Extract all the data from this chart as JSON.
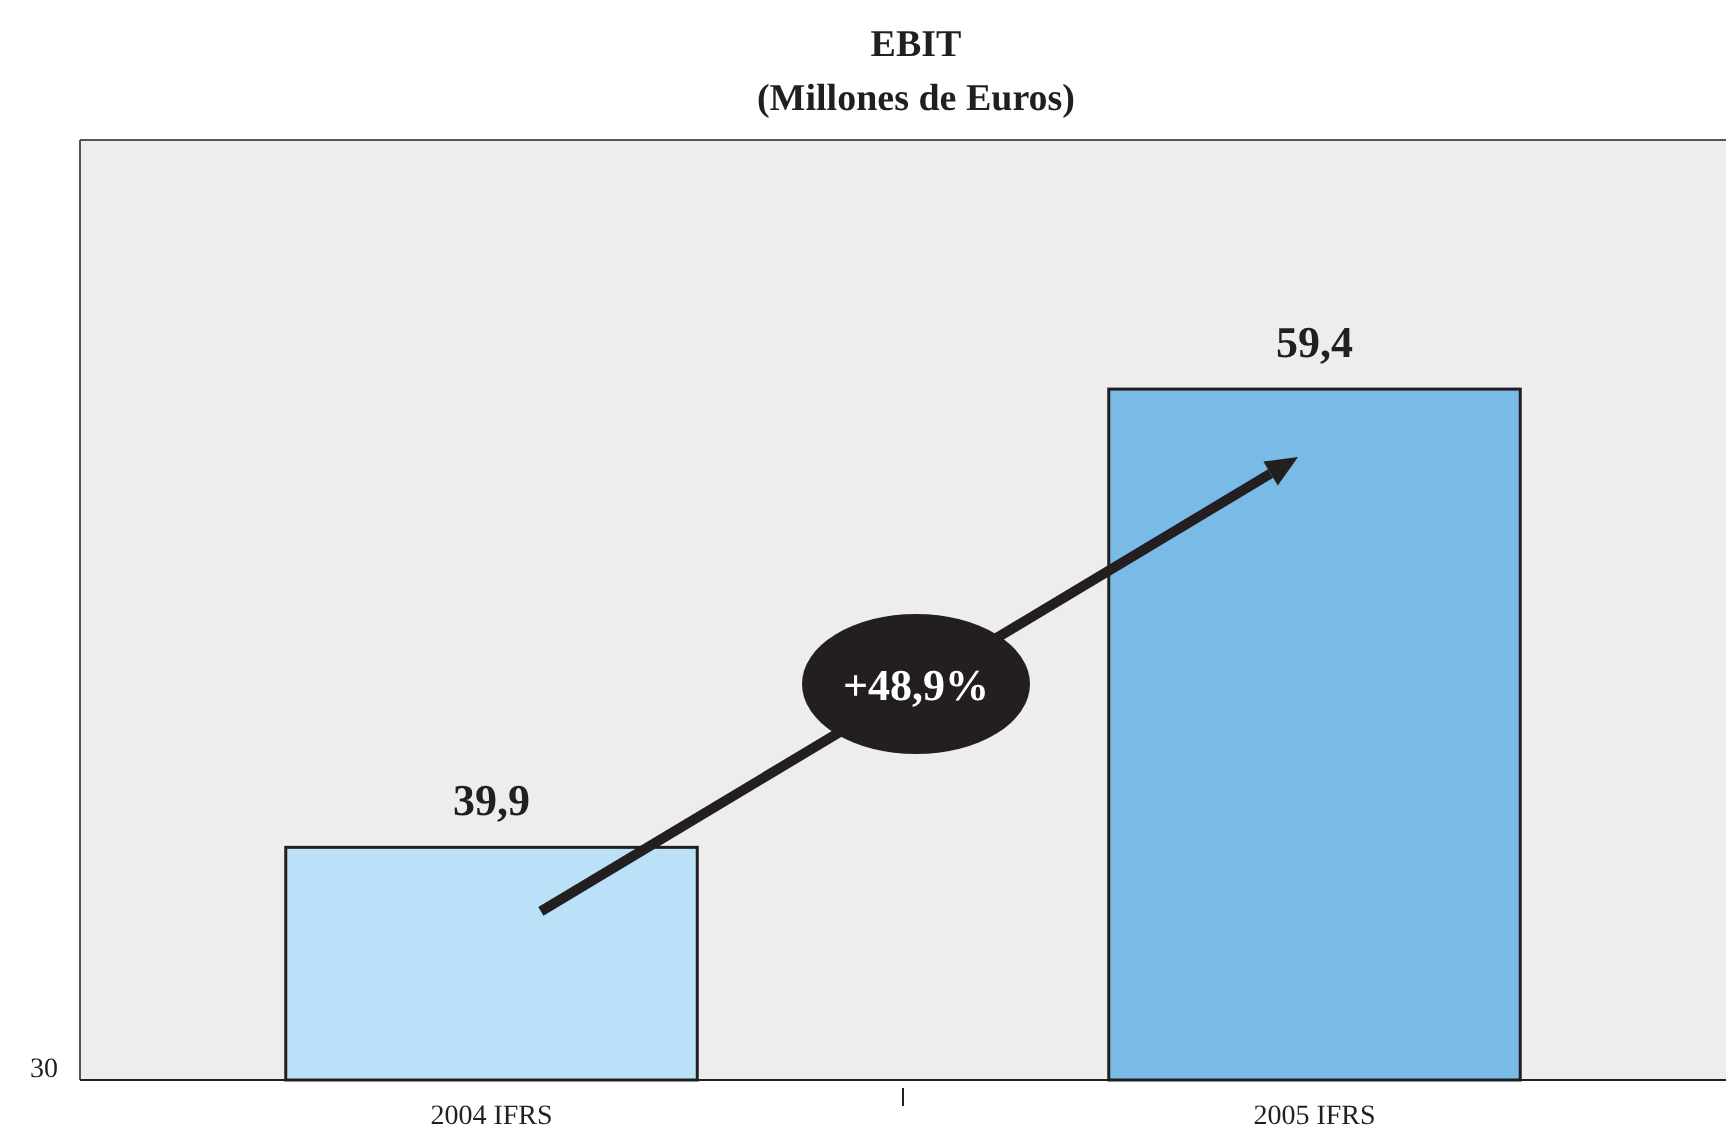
{
  "chart_data": {
    "type": "bar",
    "title": "EBIT",
    "subtitle": "(Millones de Euros)",
    "categories": [
      "2004 IFRS",
      "2005 IFRS"
    ],
    "values": [
      39.9,
      59.4
    ],
    "colors": [
      "#bae1f7",
      "#79bbe6"
    ],
    "value_labels": [
      "39,9",
      "59,4"
    ],
    "ylim": [
      30,
      70
    ],
    "annotations": [
      "+48,9%",
      "30"
    ]
  }
}
